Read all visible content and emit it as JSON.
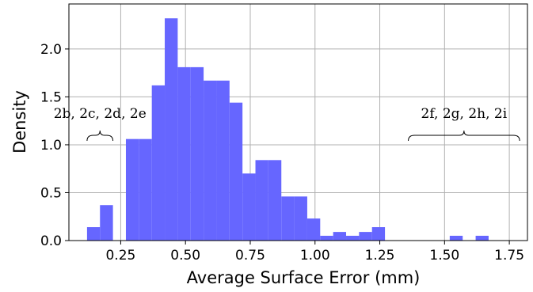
{
  "chart_data": {
    "type": "bar",
    "subtype": "histogram",
    "xlabel": "Average Surface Error (mm)",
    "ylabel": "Density",
    "xlim": [
      0.05,
      1.82
    ],
    "ylim": [
      0,
      2.47
    ],
    "xticks": [
      "0.25",
      "0.50",
      "0.75",
      "1.00",
      "1.25",
      "1.50",
      "1.75"
    ],
    "yticks": [
      "0.0",
      "0.5",
      "1.0",
      "1.5",
      "2.0"
    ],
    "grid": true,
    "bar_color": "#6666ff",
    "bins": [
      {
        "x0": 0.12,
        "x1": 0.17,
        "density": 0.14
      },
      {
        "x0": 0.17,
        "x1": 0.22,
        "density": 0.37
      },
      {
        "x0": 0.27,
        "x1": 0.32,
        "density": 1.06
      },
      {
        "x0": 0.32,
        "x1": 0.37,
        "density": 1.06
      },
      {
        "x0": 0.37,
        "x1": 0.42,
        "density": 1.62
      },
      {
        "x0": 0.42,
        "x1": 0.47,
        "density": 2.32
      },
      {
        "x0": 0.47,
        "x1": 0.52,
        "density": 1.81
      },
      {
        "x0": 0.52,
        "x1": 0.57,
        "density": 1.81
      },
      {
        "x0": 0.57,
        "x1": 0.62,
        "density": 1.67
      },
      {
        "x0": 0.62,
        "x1": 0.67,
        "density": 1.67
      },
      {
        "x0": 0.67,
        "x1": 0.72,
        "density": 1.44
      },
      {
        "x0": 0.72,
        "x1": 0.77,
        "density": 0.7
      },
      {
        "x0": 0.77,
        "x1": 0.82,
        "density": 0.84
      },
      {
        "x0": 0.82,
        "x1": 0.87,
        "density": 0.84
      },
      {
        "x0": 0.87,
        "x1": 0.92,
        "density": 0.46
      },
      {
        "x0": 0.92,
        "x1": 0.97,
        "density": 0.46
      },
      {
        "x0": 0.97,
        "x1": 1.02,
        "density": 0.23
      },
      {
        "x0": 1.02,
        "x1": 1.07,
        "density": 0.05
      },
      {
        "x0": 1.07,
        "x1": 1.12,
        "density": 0.09
      },
      {
        "x0": 1.12,
        "x1": 1.17,
        "density": 0.05
      },
      {
        "x0": 1.17,
        "x1": 1.22,
        "density": 0.09
      },
      {
        "x0": 1.22,
        "x1": 1.27,
        "density": 0.14
      },
      {
        "x0": 1.52,
        "x1": 1.57,
        "density": 0.05
      },
      {
        "x0": 1.62,
        "x1": 1.67,
        "density": 0.05
      }
    ],
    "annotations": [
      {
        "text": "2b, 2c, 2d, 2e",
        "brace_x": [
          0.12,
          0.22
        ]
      },
      {
        "text": "2f, 2g, 2h, 2i",
        "brace_x": [
          1.36,
          1.79
        ]
      }
    ]
  }
}
